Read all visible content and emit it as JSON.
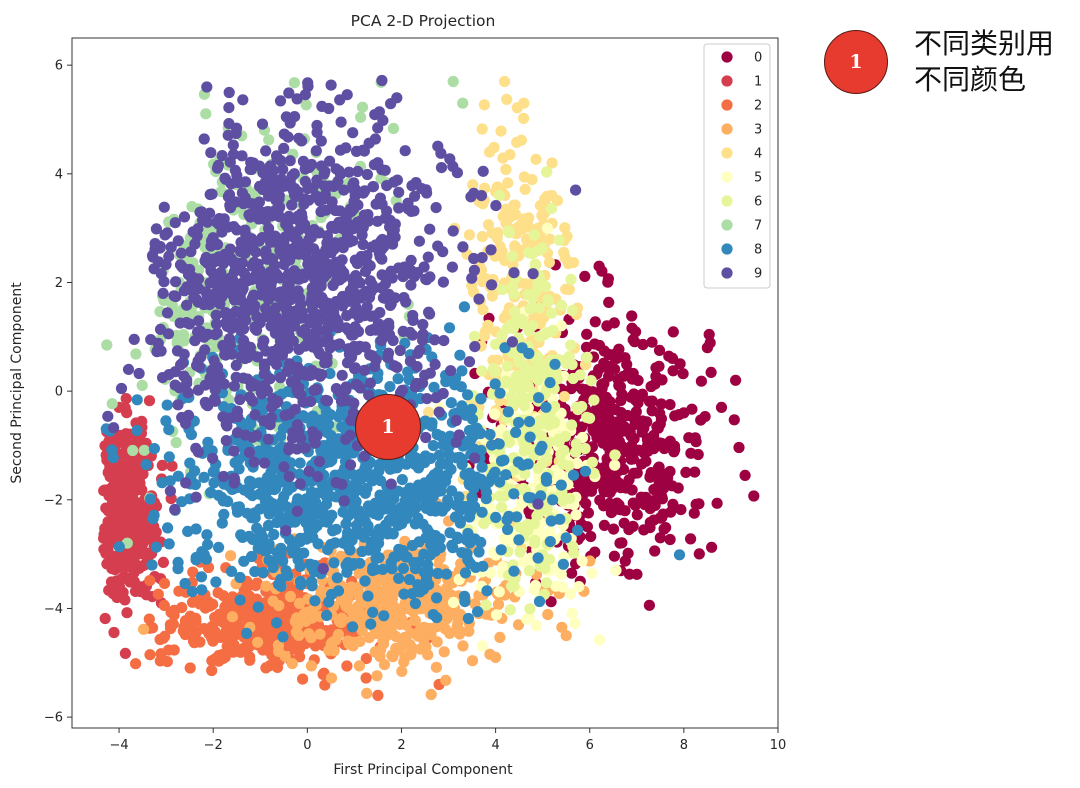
{
  "chart_data": {
    "type": "scatter",
    "title": "PCA 2-D Projection",
    "xlabel": "First Principal Component",
    "ylabel": "Second Principal Component",
    "xlim": [
      -5,
      10
    ],
    "ylim": [
      -6.2,
      6.5
    ],
    "xticks": [
      -4,
      -2,
      0,
      2,
      4,
      6,
      8,
      10
    ],
    "yticks": [
      -6,
      -4,
      -2,
      0,
      2,
      4,
      6
    ],
    "grid": false,
    "legend_position": "top-right",
    "series": [
      {
        "name": "0",
        "color": "#9e0142",
        "center": [
          6.4,
          -0.9
        ],
        "spread": [
          1.05,
          1.15
        ],
        "count": 520,
        "points": [
          [
            9.3,
            -1.55
          ],
          [
            9.1,
            0.2
          ],
          [
            8.8,
            -0.3
          ],
          [
            8.5,
            0.8
          ],
          [
            6.2,
            2.3
          ],
          [
            5.8,
            -3.5
          ],
          [
            7.5,
            -2.7
          ]
        ]
      },
      {
        "name": "1",
        "color": "#d53e4f",
        "center": [
          -3.8,
          -2.2
        ],
        "spread": [
          0.32,
          0.8
        ],
        "count": 330,
        "points": [
          [
            -4.0,
            -0.3
          ],
          [
            -3.1,
            -3.9
          ],
          [
            -3.9,
            -2.8
          ]
        ]
      },
      {
        "name": "2",
        "color": "#f46d43",
        "center": [
          -0.8,
          -4.25
        ],
        "spread": [
          1.15,
          0.45
        ],
        "count": 420,
        "points": [
          [
            1.5,
            -5.6
          ],
          [
            -0.1,
            -5.3
          ],
          [
            2.8,
            -5.4
          ]
        ]
      },
      {
        "name": "3",
        "color": "#fdae61",
        "center": [
          1.9,
          -3.9
        ],
        "spread": [
          1.3,
          0.55
        ],
        "count": 400,
        "points": [
          [
            5.5,
            -4.5
          ],
          [
            4.0,
            -4.9
          ]
        ]
      },
      {
        "name": "4",
        "color": "#fee08b",
        "center": [
          4.5,
          1.6
        ],
        "spread": [
          0.6,
          2.0
        ],
        "count": 250,
        "points": [
          [
            4.6,
            5.3
          ],
          [
            5.2,
            4.2
          ]
        ]
      },
      {
        "name": "5",
        "color": "#ffffbf",
        "center": [
          4.7,
          -1.9
        ],
        "spread": [
          0.7,
          1.2
        ],
        "count": 200,
        "points": [
          [
            5.1,
            3.0
          ]
        ]
      },
      {
        "name": "6",
        "color": "#e6f598",
        "center": [
          4.8,
          -0.5
        ],
        "spread": [
          0.55,
          1.6
        ],
        "count": 260,
        "points": [
          [
            5.8,
            0.3
          ]
        ]
      },
      {
        "name": "7",
        "color": "#abdda4",
        "center": [
          -1.5,
          2.2
        ],
        "spread": [
          1.4,
          1.7
        ],
        "count": 320,
        "points": [
          [
            3.1,
            5.7
          ],
          [
            3.3,
            5.3
          ]
        ]
      },
      {
        "name": "8",
        "color": "#3288bd",
        "center": [
          1.0,
          -1.6
        ],
        "spread": [
          1.85,
          1.05
        ],
        "count": 1050,
        "points": [
          [
            4.2,
            0.8
          ],
          [
            5.5,
            -2.7
          ],
          [
            -3.3,
            -3.2
          ]
        ]
      },
      {
        "name": "9",
        "color": "#5e4fa2",
        "center": [
          -0.3,
          2.0
        ],
        "spread": [
          1.65,
          1.55
        ],
        "count": 1150,
        "points": [
          [
            1.9,
            5.4
          ],
          [
            5.7,
            3.7
          ],
          [
            3.7,
            3.6
          ],
          [
            -3.8,
            0.4
          ]
        ]
      }
    ]
  },
  "annotation": {
    "badge_label": "1",
    "text_lines": [
      "不同类别用",
      "不同颜色"
    ]
  }
}
